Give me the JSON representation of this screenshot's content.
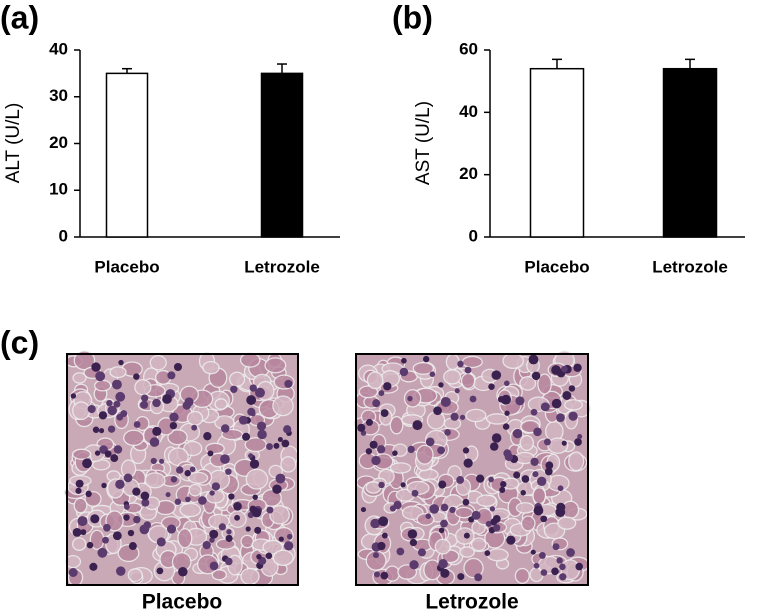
{
  "chart_data": [
    {
      "type": "bar",
      "panel_label": "(a)",
      "ylabel": "ALT  (U/L)",
      "categories": [
        "Placebo",
        "Letrozole"
      ],
      "values": [
        35,
        35
      ],
      "errors": [
        1,
        2
      ],
      "colors": [
        "#ffffff",
        "#000000"
      ],
      "ylim": [
        0,
        40
      ],
      "yticks": [
        0,
        10,
        20,
        30,
        40
      ]
    },
    {
      "type": "bar",
      "panel_label": "(b)",
      "ylabel": "AST  (U/L)",
      "categories": [
        "Placebo",
        "Letrozole"
      ],
      "values": [
        54,
        54
      ],
      "errors": [
        3,
        3
      ],
      "colors": [
        "#ffffff",
        "#000000"
      ],
      "ylim": [
        0,
        60
      ],
      "yticks": [
        0,
        20,
        40,
        60
      ]
    }
  ],
  "panel_c": {
    "label": "(c)",
    "captions": [
      "Placebo",
      "Letrozole"
    ]
  }
}
